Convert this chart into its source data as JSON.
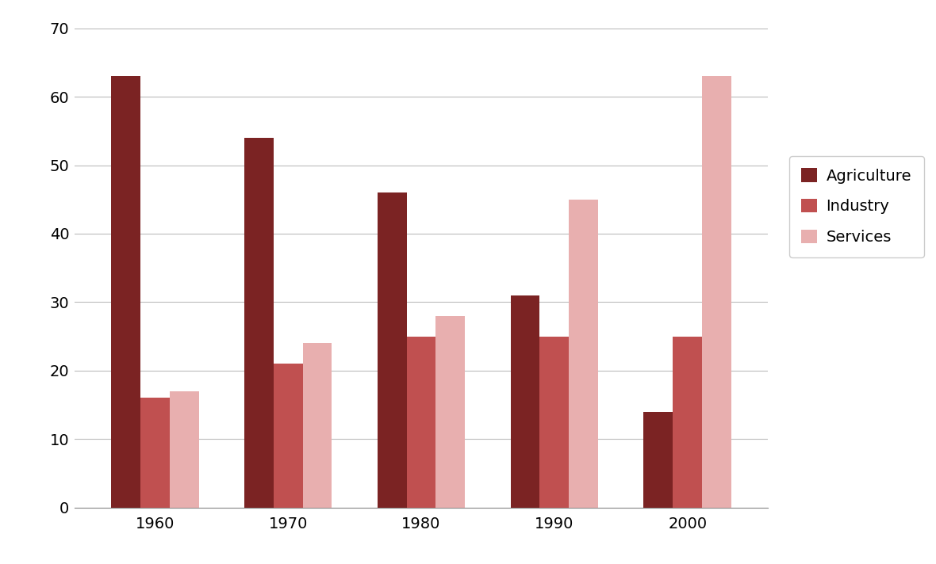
{
  "years": [
    "1960",
    "1970",
    "1980",
    "1990",
    "2000"
  ],
  "agriculture": [
    63,
    54,
    46,
    31,
    14
  ],
  "industry": [
    16,
    21,
    25,
    25,
    25
  ],
  "services": [
    17,
    24,
    28,
    45,
    63
  ],
  "color_agriculture": "#7B2323",
  "color_industry": "#C05050",
  "color_services": "#E8AFAF",
  "legend_labels": [
    "Agriculture",
    "Industry",
    "Services"
  ],
  "ylim": [
    0,
    70
  ],
  "yticks": [
    0,
    10,
    20,
    30,
    40,
    50,
    60,
    70
  ],
  "bar_width": 0.22,
  "background_color": "#FFFFFF",
  "grid_color": "#BBBBBB",
  "legend_fontsize": 14,
  "tick_fontsize": 14,
  "figsize": [
    11.8,
    7.12
  ],
  "dpi": 100
}
